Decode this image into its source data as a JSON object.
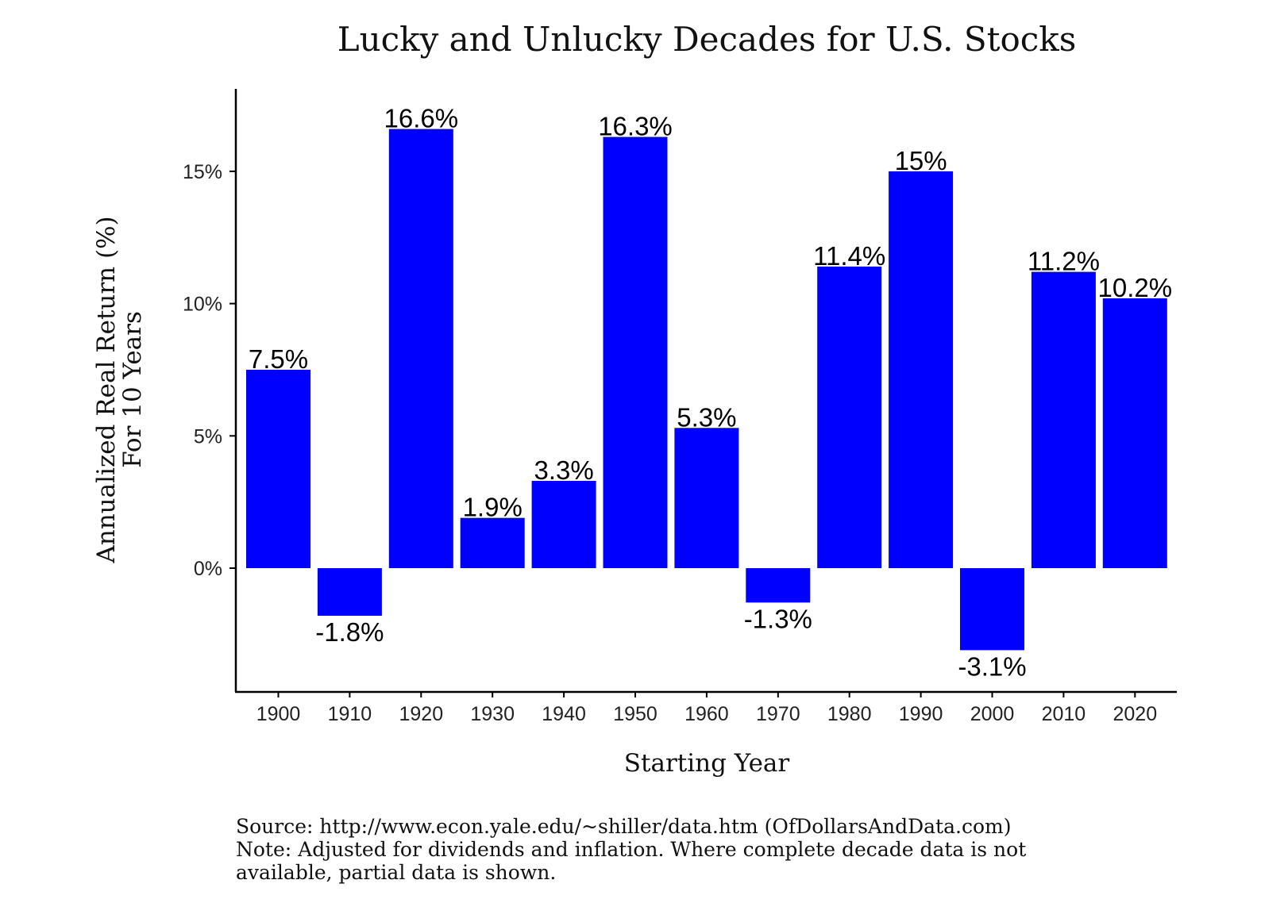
{
  "chart_data": {
    "type": "bar",
    "title": "Lucky and Unlucky Decades for U.S. Stocks",
    "xlabel": "Starting Year",
    "ylabel_lines": [
      "Annualized Real Return (%)",
      "For 10 Years"
    ],
    "categories": [
      "1900",
      "1910",
      "1920",
      "1930",
      "1940",
      "1950",
      "1960",
      "1970",
      "1980",
      "1990",
      "2000",
      "2010",
      "2020"
    ],
    "values": [
      7.5,
      -1.8,
      16.6,
      1.9,
      3.3,
      16.3,
      5.3,
      -1.3,
      11.4,
      15,
      -3.1,
      11.2,
      10.2
    ],
    "data_labels": [
      "7.5%",
      "-1.8%",
      "16.6%",
      "1.9%",
      "3.3%",
      "16.3%",
      "5.3%",
      "-1.3%",
      "11.4%",
      "15%",
      "-3.1%",
      "11.2%",
      "10.2%"
    ],
    "yticks": [
      0,
      5,
      10,
      15
    ],
    "ytick_labels": [
      "0%",
      "5%",
      "10%",
      "15%"
    ],
    "ylim": [
      -4.7,
      18.3
    ],
    "grid": false,
    "legend": "none",
    "bar_color": "#0000ff"
  },
  "footer": {
    "source": "Source: http://www.econ.yale.edu/~shiller/data.htm (OfDollarsAndData.com)",
    "note_line1": "Note: Adjusted for dividends and inflation. Where complete decade data is not",
    "note_line2": "available, partial data is shown."
  }
}
